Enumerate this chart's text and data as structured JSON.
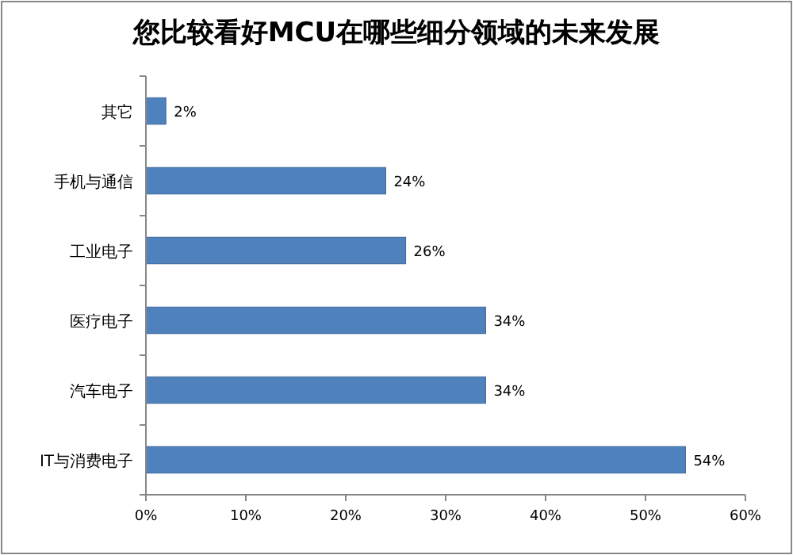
{
  "chart_data": {
    "type": "bar",
    "orientation": "horizontal",
    "title": "您比较看好MCU在哪些细分领域的未来发展",
    "categories": [
      "其它",
      "手机与通信",
      "工业电子",
      "医疗电子",
      "汽车电子",
      "IT与消费电子"
    ],
    "values": [
      2,
      24,
      26,
      34,
      34,
      54
    ],
    "value_labels": [
      "2%",
      "24%",
      "26%",
      "34%",
      "34%",
      "54%"
    ],
    "color": "#4f81bd",
    "xlim": [
      0,
      60
    ],
    "xticks": [
      {
        "value": 0,
        "label": "0%"
      },
      {
        "value": 10,
        "label": "10%"
      },
      {
        "value": 20,
        "label": "20%"
      },
      {
        "value": 30,
        "label": "30%"
      },
      {
        "value": 40,
        "label": "40%"
      },
      {
        "value": 50,
        "label": "50%"
      },
      {
        "value": 60,
        "label": "60%"
      }
    ]
  }
}
